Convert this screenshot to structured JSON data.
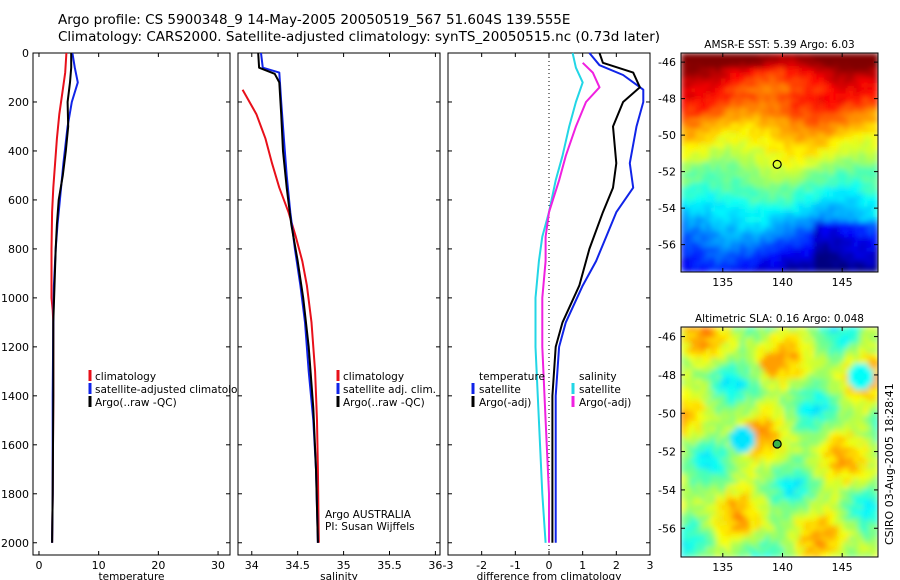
{
  "title_line1": "Argo profile: CS 5900348_9 14-May-2005 20050519_567 51.604S 139.555E",
  "title_line2": "Climatology: CARS2000. Satellite-adjusted climatology: synTS_20050515.nc (0.73d later)",
  "stamp": "CSIRO 03-Aug-2005 18:28:41",
  "colors": {
    "red": "#e8101a",
    "blue": "#1024e8",
    "black": "#000000",
    "cyan": "#22d6e6",
    "magenta": "#f020e0"
  },
  "depth_ticks": [
    "0",
    "200",
    "400",
    "600",
    "800",
    "1000",
    "1200",
    "1400",
    "1600",
    "1800",
    "2000"
  ],
  "chart_data": [
    {
      "type": "line",
      "name": "temperature-panel",
      "xlabel": "temperature",
      "ylabel": "",
      "xlim": [
        -1,
        32
      ],
      "ylim": [
        2050,
        0
      ],
      "xticks": [
        0,
        10,
        20,
        30
      ],
      "xtick_labels": [
        "0",
        "10",
        "20",
        "30"
      ],
      "legend": {
        "placement": "middle-right",
        "entries": [
          "climatology",
          "satellite-adjusted climatology",
          "Argo(..raw -QC)"
        ]
      },
      "series": [
        {
          "name": "climatology",
          "color": "red",
          "points": [
            [
              4.6,
              0
            ],
            [
              4.4,
              80
            ],
            [
              4.0,
              150
            ],
            [
              3.4,
              250
            ],
            [
              3.0,
              350
            ],
            [
              2.7,
              450
            ],
            [
              2.4,
              550
            ],
            [
              2.2,
              650
            ],
            [
              2.1,
              800
            ],
            [
              2.1,
              1000
            ],
            [
              2.3,
              1050
            ],
            [
              2.4,
              1100
            ],
            [
              2.4,
              1400
            ],
            [
              2.3,
              1800
            ],
            [
              2.2,
              2000
            ]
          ]
        },
        {
          "name": "satellite-adjusted climatology",
          "color": "blue",
          "points": [
            [
              5.6,
              0
            ],
            [
              6.0,
              60
            ],
            [
              6.5,
              120
            ],
            [
              5.5,
              200
            ],
            [
              4.8,
              300
            ],
            [
              4.1,
              450
            ],
            [
              3.5,
              600
            ],
            [
              3.1,
              700
            ],
            [
              2.8,
              800
            ],
            [
              2.5,
              950
            ],
            [
              2.4,
              1100
            ],
            [
              2.3,
              1400
            ],
            [
              2.3,
              1800
            ],
            [
              2.2,
              2000
            ]
          ]
        },
        {
          "name": "Argo(..raw -QC)",
          "color": "black",
          "points": [
            [
              5.4,
              0
            ],
            [
              5.4,
              60
            ],
            [
              5.2,
              120
            ],
            [
              4.8,
              200
            ],
            [
              4.9,
              300
            ],
            [
              4.5,
              400
            ],
            [
              4.0,
              500
            ],
            [
              3.3,
              600
            ],
            [
              3.0,
              700
            ],
            [
              2.8,
              800
            ],
            [
              2.6,
              950
            ],
            [
              2.4,
              1100
            ],
            [
              2.4,
              1400
            ],
            [
              2.3,
              1800
            ],
            [
              2.2,
              2000
            ]
          ]
        }
      ]
    },
    {
      "type": "line",
      "name": "salinity-panel",
      "xlabel": "salinity",
      "ylabel": "",
      "xlim": [
        33.85,
        36.05
      ],
      "ylim": [
        2050,
        0
      ],
      "xticks": [
        34,
        34.5,
        35,
        35.5,
        36
      ],
      "xtick_labels": [
        "34",
        "34.5",
        "35",
        "35.5",
        "36"
      ],
      "legend": {
        "placement": "middle-right",
        "entries": [
          "climatology",
          "satellite adj. clim.",
          "Argo(..raw -QC)"
        ]
      },
      "annotations": [
        "Argo AUSTRALIA",
        "PI: Susan Wijffels"
      ],
      "series": [
        {
          "name": "climatology",
          "color": "red",
          "points": [
            [
              33.9,
              150
            ],
            [
              34.05,
              250
            ],
            [
              34.15,
              350
            ],
            [
              34.22,
              450
            ],
            [
              34.3,
              550
            ],
            [
              34.4,
              650
            ],
            [
              34.48,
              750
            ],
            [
              34.55,
              850
            ],
            [
              34.6,
              950
            ],
            [
              34.65,
              1100
            ],
            [
              34.69,
              1300
            ],
            [
              34.71,
              1500
            ],
            [
              34.72,
              1700
            ],
            [
              34.73,
              2000
            ]
          ]
        },
        {
          "name": "satellite adj. clim.",
          "color": "blue",
          "points": [
            [
              34.1,
              0
            ],
            [
              34.12,
              60
            ],
            [
              34.3,
              80
            ],
            [
              34.32,
              200
            ],
            [
              34.35,
              350
            ],
            [
              34.38,
              500
            ],
            [
              34.42,
              650
            ],
            [
              34.47,
              800
            ],
            [
              34.53,
              950
            ],
            [
              34.58,
              1100
            ],
            [
              34.62,
              1300
            ],
            [
              34.67,
              1500
            ],
            [
              34.7,
              1700
            ],
            [
              34.72,
              2000
            ]
          ]
        },
        {
          "name": "Argo(..raw -QC)",
          "color": "black",
          "points": [
            [
              34.07,
              0
            ],
            [
              34.08,
              60
            ],
            [
              34.25,
              85
            ],
            [
              34.3,
              120
            ],
            [
              34.32,
              250
            ],
            [
              34.34,
              400
            ],
            [
              34.38,
              550
            ],
            [
              34.43,
              700
            ],
            [
              34.5,
              850
            ],
            [
              34.56,
              1000
            ],
            [
              34.62,
              1200
            ],
            [
              34.67,
              1450
            ],
            [
              34.7,
              1700
            ],
            [
              34.72,
              2000
            ]
          ]
        }
      ]
    },
    {
      "type": "line",
      "name": "difference-panel",
      "xlabel": "difference from climatology",
      "ylabel": "",
      "xlim": [
        -3,
        3
      ],
      "ylim": [
        2050,
        0
      ],
      "xticks": [
        -3,
        -2,
        -1,
        0,
        1,
        2,
        3
      ],
      "xtick_labels": [
        "-3",
        "-2",
        "-1",
        "0",
        "1",
        "2",
        "3"
      ],
      "legend": {
        "placement": "lower-middle",
        "entries": [
          "temperature",
          "satellite",
          "Argo(-adj)",
          "salinity",
          "satellite",
          "Argo(-adj)"
        ]
      },
      "series": [
        {
          "name": "temperature satellite",
          "color": "blue",
          "points": [
            [
              1.2,
              0
            ],
            [
              1.5,
              50
            ],
            [
              2.2,
              90
            ],
            [
              2.8,
              150
            ],
            [
              2.8,
              200
            ],
            [
              2.6,
              300
            ],
            [
              2.4,
              450
            ],
            [
              2.5,
              550
            ],
            [
              2.0,
              650
            ],
            [
              1.7,
              750
            ],
            [
              1.4,
              850
            ],
            [
              1.0,
              950
            ],
            [
              0.5,
              1100
            ],
            [
              0.3,
              1200
            ],
            [
              0.2,
              1400
            ],
            [
              0.2,
              1700
            ],
            [
              0.2,
              2000
            ]
          ]
        },
        {
          "name": "temperature Argo(-adj)",
          "color": "black",
          "points": [
            [
              1.5,
              0
            ],
            [
              1.6,
              40
            ],
            [
              2.5,
              80
            ],
            [
              2.7,
              140
            ],
            [
              2.2,
              200
            ],
            [
              1.9,
              300
            ],
            [
              2.0,
              450
            ],
            [
              1.9,
              550
            ],
            [
              1.6,
              650
            ],
            [
              1.2,
              800
            ],
            [
              0.9,
              950
            ],
            [
              0.4,
              1100
            ],
            [
              0.2,
              1200
            ],
            [
              0.1,
              1400
            ],
            [
              0.1,
              1700
            ],
            [
              0.1,
              2000
            ]
          ]
        },
        {
          "name": "salinity satellite",
          "color": "cyan",
          "points": [
            [
              0.7,
              0
            ],
            [
              0.8,
              60
            ],
            [
              1.0,
              120
            ],
            [
              0.8,
              200
            ],
            [
              0.6,
              300
            ],
            [
              0.4,
              420
            ],
            [
              0.2,
              520
            ],
            [
              0.0,
              650
            ],
            [
              -0.2,
              750
            ],
            [
              -0.3,
              850
            ],
            [
              -0.4,
              1000
            ],
            [
              -0.4,
              1200
            ],
            [
              -0.3,
              1500
            ],
            [
              -0.2,
              1800
            ],
            [
              -0.1,
              2000
            ]
          ]
        },
        {
          "name": "salinity Argo(-adj)",
          "color": "magenta",
          "points": [
            [
              1.0,
              40
            ],
            [
              1.3,
              80
            ],
            [
              1.5,
              140
            ],
            [
              1.1,
              200
            ],
            [
              0.8,
              300
            ],
            [
              0.5,
              420
            ],
            [
              0.3,
              520
            ],
            [
              0.0,
              650
            ],
            [
              -0.1,
              750
            ],
            [
              -0.1,
              850
            ],
            [
              -0.2,
              1000
            ],
            [
              -0.2,
              1200
            ],
            [
              -0.1,
              1500
            ],
            [
              0.0,
              1800
            ],
            [
              0.0,
              2000
            ]
          ]
        }
      ]
    },
    {
      "type": "heatmap",
      "name": "sst-map",
      "title": "AMSR-E SST: 5.39 Argo: 6.03",
      "xlim": [
        131.5,
        148
      ],
      "ylim": [
        -57.5,
        -45.5
      ],
      "xticks": [
        135,
        140,
        145
      ],
      "yticks": [
        -46,
        -48,
        -50,
        -52,
        -54,
        -56
      ],
      "xtick_labels": [
        "135",
        "140",
        "145"
      ],
      "ytick_labels": [
        "-46",
        "-48",
        "-50",
        "-52",
        "-54",
        "-56"
      ],
      "marker": {
        "lon": 139.555,
        "lat": -51.604
      }
    },
    {
      "type": "heatmap",
      "name": "sla-map",
      "title": "Altimetric SLA: 0.16 Argo: 0.048",
      "xlim": [
        131.5,
        148
      ],
      "ylim": [
        -57.5,
        -45.5
      ],
      "xticks": [
        135,
        140,
        145
      ],
      "yticks": [
        -46,
        -48,
        -50,
        -52,
        -54,
        -56
      ],
      "xtick_labels": [
        "135",
        "140",
        "145"
      ],
      "ytick_labels": [
        "-46",
        "-48",
        "-50",
        "-52",
        "-54",
        "-56"
      ],
      "marker": {
        "lon": 139.555,
        "lat": -51.604
      }
    }
  ]
}
